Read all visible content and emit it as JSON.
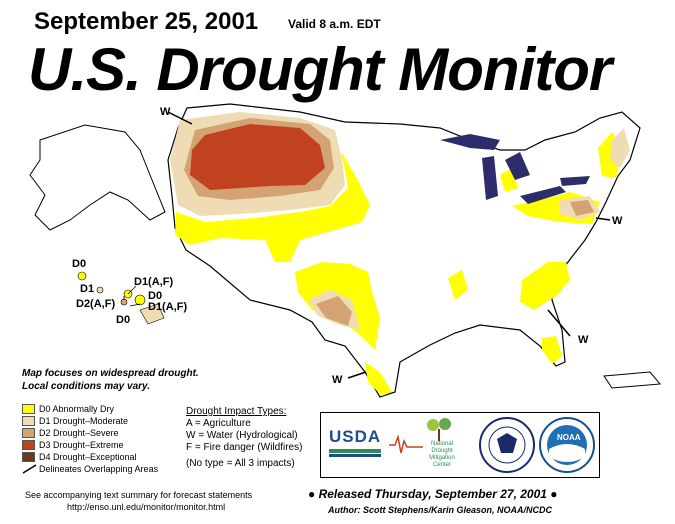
{
  "header": {
    "date": "September 25, 2001",
    "valid": "Valid 8 a.m. EDT",
    "title": "U.S. Drought Monitor"
  },
  "map_labels": {
    "w_northwest": "W",
    "w_northeast": "W",
    "w_southeast": "W",
    "w_texas": "W",
    "hawaii": [
      "D0",
      "D1",
      "D1(A,F)",
      "D0",
      "D2(A,F)",
      "D1(A,F)",
      "D0"
    ]
  },
  "notes": {
    "line1": "Map focuses on widespread drought.",
    "line2": "Local conditions may vary."
  },
  "legend": {
    "items": [
      {
        "label": "D0 Abnormally Dry",
        "color": "#ffff00"
      },
      {
        "label": "D1 Drought–Moderate",
        "color": "#f0dcb4"
      },
      {
        "label": "D2 Drought–Severe",
        "color": "#d4a373"
      },
      {
        "label": "D3 Drought–Extreme",
        "color": "#c0421e"
      },
      {
        "label": "D4 Drought–Exceptional",
        "color": "#6b3a1e"
      }
    ],
    "overlap": "Delineates Overlapping Areas"
  },
  "impacts": {
    "title": "Drought  Impact  Types:",
    "a": "A = Agriculture",
    "w": "W = Water (Hydrological)",
    "f": "F = Fire danger (Wildfires)",
    "none": "(No type = All 3 impacts)"
  },
  "logos": {
    "usda": "USDA",
    "ndmc1": "National",
    "ndmc2": "Drought",
    "ndmc3": "Mitigation",
    "ndmc4": "Center",
    "noaa": "NOAA"
  },
  "footer": {
    "see": "See accompanying text summary for forecast statements",
    "url": "http://enso.unl.edu/monitor/monitor.html",
    "released": "Released Thursday, September 27, 2001",
    "author": "Author:  Scott Stephens/Karin Gleason, NOAA/NCDC"
  }
}
